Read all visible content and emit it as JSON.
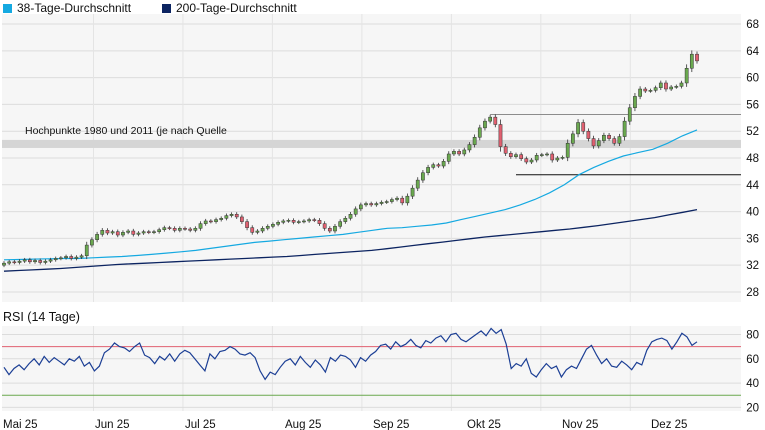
{
  "legend": [
    {
      "label": "38-Tage-Durchschnitt",
      "color": "#15a9e1"
    },
    {
      "label": "200-Tage-Durchschnitt",
      "color": "#0c2461"
    }
  ],
  "rsi_title": "RSI (14 Tage)",
  "chart_data": [
    {
      "type": "candlestick",
      "title": "",
      "y_ticks": [
        28,
        32,
        36,
        40,
        44,
        48,
        52,
        56,
        60,
        64,
        68
      ],
      "ylim": [
        26.5,
        69.5
      ],
      "x_tick_labels": [
        "Mai 25",
        "Jun 25",
        "Jul 25",
        "Aug 25",
        "Sep 25",
        "Okt 25",
        "Nov 25",
        "Dez 25"
      ],
      "grid": true,
      "colors": {
        "up": "#6aa84f",
        "down": "#e06070",
        "ma38": "#15a9e1",
        "ma200": "#0c2461"
      },
      "close": [
        32.3,
        32.5,
        32.4,
        32.6,
        32.8,
        32.5,
        32.7,
        32.4,
        32.6,
        32.8,
        33.0,
        33.1,
        33.3,
        33.0,
        33.2,
        33.4,
        35.0,
        35.8,
        36.6,
        37.2,
        36.8,
        37.0,
        36.5,
        36.9,
        37.1,
        36.6,
        36.8,
        37.0,
        36.9,
        37.0,
        37.3,
        37.6,
        37.5,
        37.2,
        37.5,
        37.4,
        37.2,
        37.5,
        38.2,
        38.6,
        38.5,
        38.8,
        39.0,
        39.4,
        39.6,
        39.2,
        38.5,
        37.6,
        36.9,
        37.1,
        37.5,
        37.8,
        38.1,
        38.4,
        38.6,
        38.7,
        38.4,
        38.5,
        38.6,
        38.8,
        38.7,
        38.2,
        37.5,
        37.1,
        37.8,
        38.5,
        39.0,
        39.6,
        40.4,
        41.0,
        41.2,
        41.0,
        41.2,
        41.4,
        41.5,
        41.8,
        42.0,
        41.3,
        42.3,
        43.5,
        44.7,
        45.8,
        46.6,
        47.0,
        46.8,
        47.5,
        48.6,
        49.0,
        48.6,
        49.2,
        50.0,
        51.1,
        52.5,
        53.5,
        54.1,
        53.0,
        49.7,
        48.7,
        48.2,
        48.5,
        47.9,
        47.4,
        47.7,
        48.4,
        48.5,
        48.6,
        47.7,
        48.0,
        48.1,
        50.2,
        51.6,
        53.3,
        52.0,
        50.9,
        49.8,
        50.6,
        51.4,
        50.9,
        50.2,
        51.2,
        53.5,
        55.5,
        57.2,
        58.3,
        58.0,
        58.1,
        58.5,
        59.2,
        58.3,
        58.6,
        58.7,
        59.2,
        61.4,
        63.5,
        62.5
      ],
      "ma38": [
        32.8,
        32.85,
        32.9,
        32.95,
        33.0,
        33.0,
        33.1,
        33.2,
        33.3,
        33.45,
        33.6,
        33.8,
        34.0,
        34.2,
        34.5,
        34.8,
        35.1,
        35.4,
        35.6,
        35.8,
        36.0,
        36.2,
        36.4,
        36.6,
        36.9,
        37.2,
        37.5,
        37.6,
        37.8,
        38.0,
        38.3,
        38.8,
        39.3,
        39.8,
        40.3,
        41.0,
        41.8,
        42.8,
        44.0,
        45.5,
        46.6,
        47.5,
        48.3,
        48.8,
        49.3,
        50.2,
        51.3,
        52.2
      ],
      "ma38_from": 0,
      "ma200": [
        31.1,
        31.2,
        31.3,
        31.4,
        31.5,
        31.65,
        31.8,
        31.95,
        32.1,
        32.2,
        32.3,
        32.4,
        32.5,
        32.6,
        32.7,
        32.8,
        32.9,
        33.0,
        33.1,
        33.2,
        33.3,
        33.45,
        33.6,
        33.75,
        33.9,
        34.05,
        34.2,
        34.45,
        34.7,
        34.95,
        35.2,
        35.45,
        35.7,
        35.95,
        36.2,
        36.4,
        36.6,
        36.8,
        37.0,
        37.2,
        37.4,
        37.65,
        37.9,
        38.2,
        38.5,
        38.8,
        39.1,
        39.5,
        39.9,
        40.3
      ],
      "hlines": [
        {
          "value": 54.5,
          "from": 94,
          "color": "#8c8c8c"
        },
        {
          "value": 45.5,
          "from": 99,
          "color": "#111111"
        }
      ],
      "band": {
        "from": 49.5,
        "to": 50.7,
        "color": "#d5d5d5",
        "label": "Hochpunkte 1980 und 2011 (je nach Quelle"
      }
    },
    {
      "type": "line",
      "title": "RSI (14 Tage)",
      "y_ticks": [
        20,
        40,
        60,
        80
      ],
      "ylim": [
        17,
        87
      ],
      "reference_lines": [
        {
          "value": 70,
          "color": "#e06070"
        },
        {
          "value": 30,
          "color": "#6aa84f"
        }
      ],
      "x_tick_labels": [
        "Mai 25",
        "Jun 25",
        "Jul 25",
        "Aug 25",
        "Sep 25",
        "Okt 25",
        "Nov 25",
        "Dez 25"
      ],
      "grid": true,
      "color": "#1c3f95",
      "values": [
        53,
        47,
        52,
        55,
        51,
        56,
        60,
        55,
        62,
        57,
        61,
        58,
        55,
        60,
        58,
        62,
        54,
        57,
        50,
        54,
        65,
        68,
        73,
        70,
        69,
        66,
        70,
        73,
        63,
        61,
        56,
        62,
        59,
        64,
        58,
        64,
        67,
        65,
        60,
        55,
        50,
        64,
        60,
        66,
        67,
        70,
        68,
        64,
        63,
        65,
        61,
        50,
        43,
        49,
        47,
        53,
        58,
        60,
        55,
        62,
        57,
        53,
        59,
        55,
        49,
        61,
        58,
        63,
        62,
        59,
        53,
        61,
        58,
        63,
        66,
        71,
        72,
        68,
        74,
        70,
        72,
        76,
        71,
        69,
        75,
        73,
        77,
        79,
        74,
        80,
        81,
        76,
        74,
        77,
        80,
        83,
        79,
        85,
        81,
        84,
        72,
        52,
        56,
        54,
        60,
        48,
        45,
        51,
        56,
        52,
        54,
        45,
        51,
        54,
        52,
        60,
        68,
        71,
        63,
        56,
        60,
        54,
        53,
        58,
        55,
        51,
        57,
        55,
        67,
        74,
        76,
        77,
        75,
        68,
        74,
        81,
        78,
        71,
        74
      ]
    }
  ]
}
